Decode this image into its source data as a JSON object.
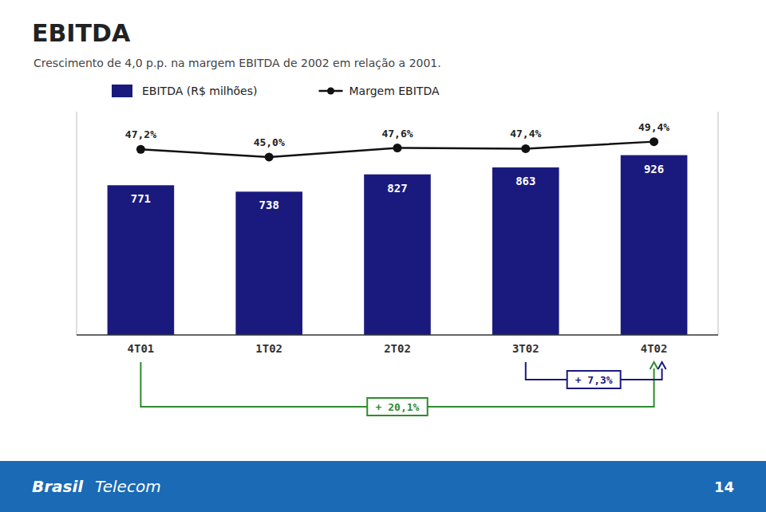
{
  "chart_data": {
    "type": "bar",
    "title": "EBITDA",
    "subtitle": "Crescimento de 4,0 p.p. na margem EBITDA de 2002 em relação a 2001.",
    "categories": [
      "4T01",
      "1T02",
      "2T02",
      "3T02",
      "4T02"
    ],
    "series": [
      {
        "name": "EBITDA (R$ milhões)",
        "type": "bar",
        "color": "#1a1a7e",
        "values": [
          771,
          738,
          827,
          863,
          926
        ]
      },
      {
        "name": "Margem EBITDA",
        "type": "line",
        "axis": "y2",
        "color": "#111111",
        "marker": "circle",
        "values": [
          47.2,
          45.0,
          47.6,
          47.4,
          49.4
        ],
        "value_labels": [
          "47,2%",
          "45,0%",
          "47,6%",
          "47,4%",
          "49,4%"
        ]
      }
    ],
    "ylim": [
      0,
      1150
    ],
    "y2lim": [
      -6,
      58
    ],
    "tick_labels": "x",
    "data_labels": true,
    "grid": false,
    "legend": "top",
    "annotations": [
      {
        "text": "+ 20,1%",
        "from": "4T01",
        "to": "4T02",
        "color": "#2e8b2e"
      },
      {
        "text": "+ 7,3%",
        "from": "3T02",
        "to": "4T02",
        "color": "#1a1a7e"
      }
    ],
    "footer": {
      "color": "#1a6ab5",
      "texts": [
        "Brasil",
        "Telecom"
      ],
      "page": "14"
    }
  }
}
